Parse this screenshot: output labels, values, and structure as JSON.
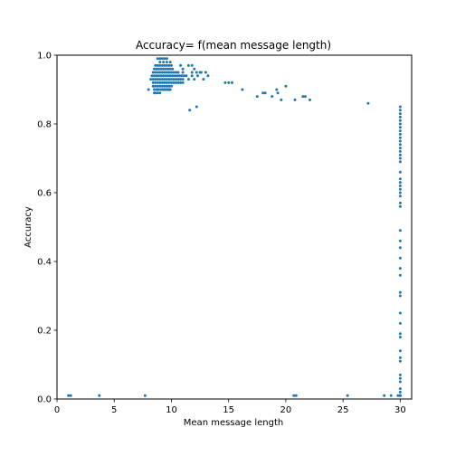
{
  "chart_data": {
    "type": "scatter",
    "title": "Accuracy= f(mean message length)",
    "xlabel": "Mean message length",
    "ylabel": "Accuracy",
    "xlim": [
      0,
      31
    ],
    "ylim": [
      0,
      1.0
    ],
    "xticks": [
      0,
      5,
      10,
      15,
      20,
      25,
      30
    ],
    "xtick_labels": [
      "0",
      "5",
      "10",
      "15",
      "20",
      "25",
      "30"
    ],
    "yticks": [
      0.0,
      0.2,
      0.4,
      0.6,
      0.8,
      1.0
    ],
    "ytick_labels": [
      "0.0",
      "0.2",
      "0.4",
      "0.6",
      "0.8",
      "1.0"
    ],
    "grid": false,
    "legend": "none",
    "marker_color": "#1f77b4",
    "series": [
      {
        "x": [
          8.8,
          9.0,
          9.2,
          9.4,
          9.6,
          9.0,
          9.3,
          9.6,
          9.9,
          8.6,
          8.8,
          9.0,
          9.2,
          9.4,
          9.6,
          9.8,
          10.0,
          8.5,
          8.7,
          8.9,
          9.1,
          9.3,
          9.5,
          9.7,
          9.9,
          10.1,
          8.4,
          8.6,
          8.8,
          9.0,
          9.2,
          9.4,
          9.6,
          9.8,
          10.0,
          10.2,
          10.4,
          10.6,
          8.3,
          8.5,
          8.7,
          8.9,
          9.1,
          9.3,
          9.5,
          9.7,
          9.9,
          10.1,
          10.3,
          10.5,
          10.7,
          10.9,
          11.1,
          11.3,
          8.4,
          8.6,
          8.8,
          9.0,
          9.2,
          9.4,
          9.6,
          9.8,
          10.0,
          10.2,
          10.4,
          10.6,
          10.8,
          11.0,
          8.2,
          8.4,
          8.6,
          8.8,
          9.0,
          9.2,
          9.4,
          9.6,
          9.8,
          10.0,
          10.2,
          10.4,
          10.6,
          10.8,
          11.0,
          8.4,
          8.6,
          8.8,
          9.0,
          9.2,
          9.4,
          9.6,
          9.8,
          10.0,
          8.5,
          8.7,
          8.9,
          9.1,
          9.3,
          9.5,
          9.7,
          9.9,
          8.0,
          8.6,
          8.8,
          9.0,
          9.2,
          9.4,
          9.6,
          9.8,
          8.5,
          8.8,
          10.8,
          11.0,
          11.5,
          11.8,
          12.0,
          12.5,
          11.0,
          11.8,
          12.2,
          12.6,
          13.0,
          11.5,
          12.0,
          12.8,
          11.8,
          12.3,
          13.2,
          14.7,
          15.0,
          15.3,
          16.2,
          17.5,
          18.0,
          18.2,
          18.8,
          19.2,
          19.3,
          19.6,
          20.0,
          20.8,
          21.5,
          21.7,
          22.1,
          11.6,
          12.2,
          27.2,
          30.0,
          30.0,
          30.0,
          30.0,
          30.0,
          30.0,
          30.0,
          30.0,
          30.0,
          30.0,
          30.0,
          30.0,
          30.0,
          30.0,
          30.0,
          30.0,
          30.0,
          30.0,
          30.0,
          30.0,
          30.0,
          30.0,
          30.0,
          30.0,
          30.0,
          30.0,
          30.0,
          30.0,
          30.0,
          30.0,
          30.0,
          30.0,
          30.0,
          30.0,
          30.0,
          30.0,
          30.0,
          30.0,
          30.0,
          30.0,
          30.0,
          30.0,
          30.0,
          30.0,
          30.0,
          30.0,
          30.0,
          30.0,
          1.0,
          1.2,
          3.7,
          7.7,
          20.7,
          20.9,
          25.4,
          28.6,
          29.2,
          29.8,
          30.0
        ],
        "y": [
          0.99,
          0.99,
          0.99,
          0.99,
          0.99,
          0.98,
          0.98,
          0.98,
          0.98,
          0.97,
          0.97,
          0.97,
          0.97,
          0.97,
          0.97,
          0.97,
          0.97,
          0.96,
          0.96,
          0.96,
          0.96,
          0.96,
          0.96,
          0.96,
          0.96,
          0.96,
          0.95,
          0.95,
          0.95,
          0.95,
          0.95,
          0.95,
          0.95,
          0.95,
          0.95,
          0.95,
          0.95,
          0.95,
          0.94,
          0.94,
          0.94,
          0.94,
          0.94,
          0.94,
          0.94,
          0.94,
          0.94,
          0.94,
          0.94,
          0.94,
          0.94,
          0.94,
          0.94,
          0.94,
          0.93,
          0.93,
          0.93,
          0.93,
          0.93,
          0.93,
          0.93,
          0.93,
          0.93,
          0.93,
          0.93,
          0.93,
          0.93,
          0.93,
          0.93,
          0.92,
          0.92,
          0.92,
          0.92,
          0.92,
          0.92,
          0.92,
          0.92,
          0.92,
          0.92,
          0.92,
          0.92,
          0.92,
          0.92,
          0.91,
          0.91,
          0.91,
          0.91,
          0.91,
          0.91,
          0.91,
          0.91,
          0.91,
          0.9,
          0.9,
          0.9,
          0.9,
          0.9,
          0.9,
          0.9,
          0.9,
          0.9,
          0.89,
          0.89,
          0.89,
          0.9,
          0.9,
          0.9,
          0.9,
          0.89,
          0.9,
          0.97,
          0.96,
          0.97,
          0.97,
          0.96,
          0.95,
          0.95,
          0.95,
          0.95,
          0.95,
          0.95,
          0.93,
          0.93,
          0.93,
          0.94,
          0.94,
          0.94,
          0.92,
          0.92,
          0.92,
          0.9,
          0.88,
          0.89,
          0.89,
          0.88,
          0.9,
          0.89,
          0.87,
          0.91,
          0.87,
          0.88,
          0.88,
          0.87,
          0.84,
          0.85,
          0.86,
          0.85,
          0.84,
          0.83,
          0.82,
          0.81,
          0.8,
          0.79,
          0.78,
          0.77,
          0.76,
          0.75,
          0.74,
          0.73,
          0.72,
          0.71,
          0.7,
          0.69,
          0.66,
          0.64,
          0.63,
          0.62,
          0.61,
          0.6,
          0.59,
          0.57,
          0.56,
          0.49,
          0.46,
          0.44,
          0.41,
          0.38,
          0.36,
          0.31,
          0.3,
          0.25,
          0.22,
          0.19,
          0.18,
          0.14,
          0.12,
          0.11,
          0.07,
          0.06,
          0.05,
          0.03,
          0.02,
          0.01,
          0.01,
          0.01,
          0.01,
          0.01,
          0.01,
          0.01,
          0.01,
          0.01,
          0.01,
          0.01,
          0.01,
          0.01
        ]
      }
    ]
  }
}
